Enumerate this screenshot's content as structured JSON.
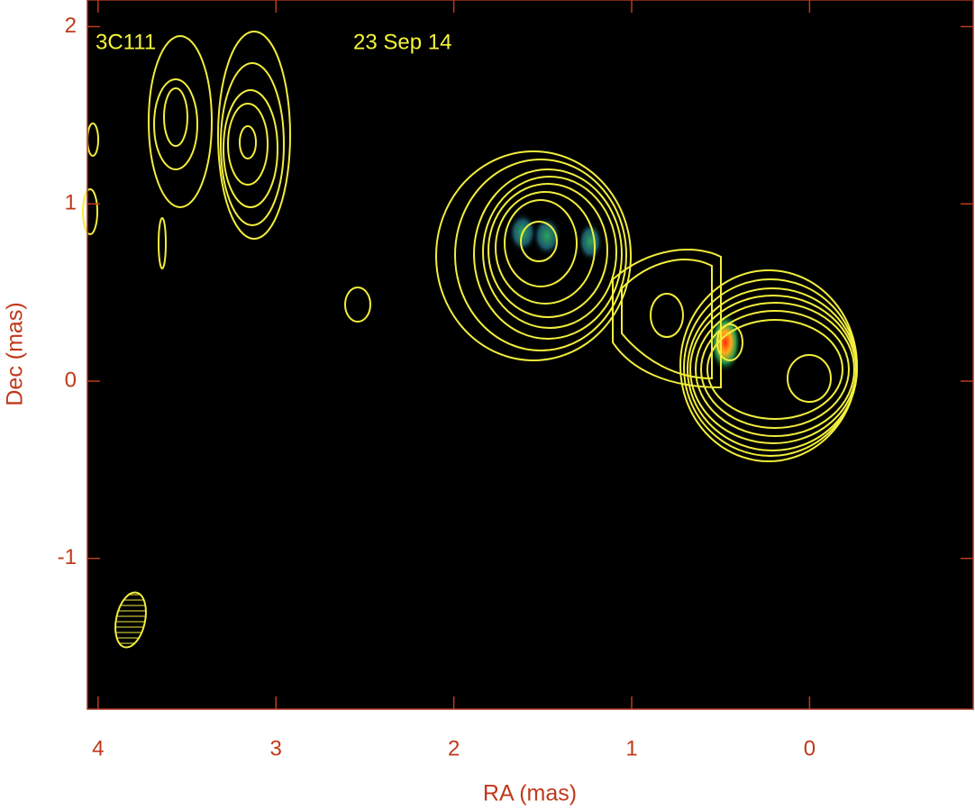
{
  "chart_data": {
    "type": "contour",
    "annotations": [
      "3C111",
      "23 Sep 14"
    ],
    "x_label": "RA (mas)",
    "y_label": "Dec (mas)",
    "xlim": [
      4.06,
      -0.92
    ],
    "ylim": [
      -1.85,
      2.15
    ],
    "xticks": [
      4,
      3,
      2,
      1,
      0
    ],
    "yticks": [
      -1,
      0,
      1,
      2
    ],
    "background": "#000000",
    "contour_color": "#f2ee3c",
    "axis_color": "#c0391b"
  }
}
